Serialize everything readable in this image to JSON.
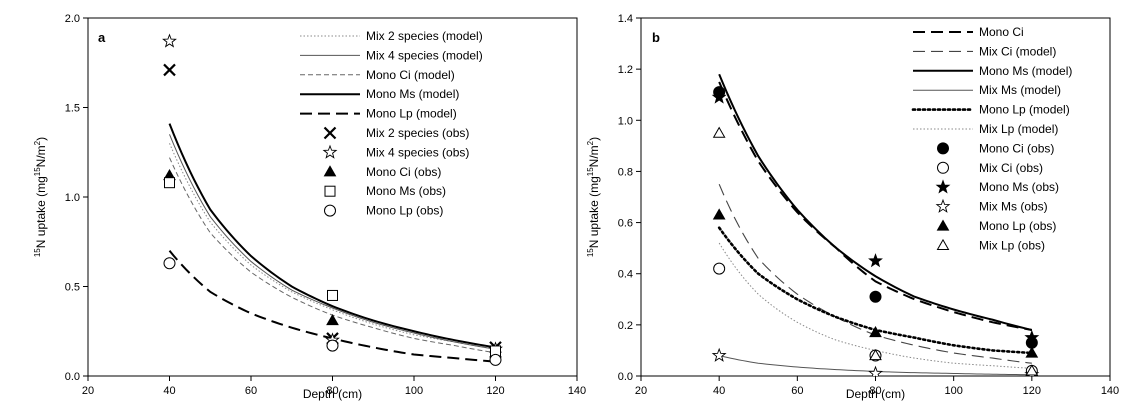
{
  "chart_data": [
    {
      "type": "scatter",
      "panel_label": "a",
      "xlabel": "Depth (cm)",
      "ylabel_prefix": "15",
      "ylabel_main": "N uptake (mg",
      "ylabel_mid": "15",
      "ylabel_end": "N/m",
      "ylabel_sup2": "2",
      "ylabel_close": ")",
      "xlim": [
        20,
        140
      ],
      "ylim": [
        0,
        2.0
      ],
      "xticks": [
        "20",
        "40",
        "60",
        "80",
        "100",
        "120",
        "140"
      ],
      "yticks": [
        "0.0",
        "0.5",
        "1.0",
        "1.5",
        "2.0"
      ],
      "legend_position": "top-right",
      "series": [
        {
          "name": "Mix 2 species (model)",
          "kind": "model",
          "style": "dotted",
          "x": [
            40,
            50,
            60,
            70,
            80,
            90,
            100,
            110,
            120
          ],
          "values": [
            1.3,
            0.86,
            0.62,
            0.47,
            0.37,
            0.29,
            0.23,
            0.19,
            0.15
          ]
        },
        {
          "name": "Mix 4 species (model)",
          "kind": "model",
          "style": "thin",
          "x": [
            40,
            50,
            60,
            70,
            80,
            90,
            100,
            110,
            120
          ],
          "values": [
            1.35,
            0.89,
            0.64,
            0.48,
            0.38,
            0.3,
            0.24,
            0.19,
            0.15
          ]
        },
        {
          "name": "Mono Ci (model)",
          "kind": "model",
          "style": "shortdash",
          "x": [
            40,
            50,
            60,
            70,
            80,
            90,
            100,
            110,
            120
          ],
          "values": [
            1.22,
            0.8,
            0.58,
            0.44,
            0.34,
            0.27,
            0.21,
            0.17,
            0.13
          ]
        },
        {
          "name": "Mono Ms (model)",
          "kind": "model",
          "style": "thick",
          "x": [
            40,
            50,
            60,
            70,
            80,
            90,
            100,
            110,
            120
          ],
          "values": [
            1.41,
            0.93,
            0.67,
            0.5,
            0.39,
            0.31,
            0.25,
            0.2,
            0.16
          ]
        },
        {
          "name": "Mono Lp (model)",
          "kind": "model",
          "style": "longdash",
          "x": [
            40,
            50,
            60,
            70,
            80,
            90,
            100,
            110,
            120
          ],
          "values": [
            0.7,
            0.47,
            0.35,
            0.27,
            0.21,
            0.16,
            0.12,
            0.1,
            0.08
          ]
        },
        {
          "name": "Mix 2 species (obs)",
          "kind": "obs",
          "marker": "x",
          "x": [
            40,
            80,
            120
          ],
          "values": [
            1.71,
            0.21,
            0.16
          ]
        },
        {
          "name": "Mix 4 species (obs)",
          "kind": "obs",
          "marker": "star-open",
          "x": [
            40,
            80,
            120
          ],
          "values": [
            1.87,
            0.2,
            0.15
          ]
        },
        {
          "name": "Mono Ci (obs)",
          "kind": "obs",
          "marker": "triangle-filled",
          "x": [
            40,
            80,
            120
          ],
          "values": [
            1.12,
            0.31,
            0.13
          ]
        },
        {
          "name": "Mono Ms (obs)",
          "kind": "obs",
          "marker": "square-open",
          "x": [
            40,
            80,
            120
          ],
          "values": [
            1.08,
            0.45,
            0.14
          ]
        },
        {
          "name": "Mono Lp (obs)",
          "kind": "obs",
          "marker": "circle-open",
          "x": [
            40,
            80,
            120
          ],
          "values": [
            0.63,
            0.17,
            0.09
          ]
        }
      ]
    },
    {
      "type": "scatter",
      "panel_label": "b",
      "xlabel": "Depth (cm)",
      "ylabel_prefix": "15",
      "ylabel_main": "N uptake (mg",
      "ylabel_mid": "15",
      "ylabel_end": "N/m",
      "ylabel_sup2": "2",
      "ylabel_close": ")",
      "xlim": [
        20,
        140
      ],
      "ylim": [
        0,
        1.4
      ],
      "xticks": [
        "20",
        "40",
        "60",
        "80",
        "100",
        "120",
        "140"
      ],
      "yticks": [
        "0.0",
        "0.2",
        "0.4",
        "0.6",
        "0.8",
        "1.0",
        "1.2",
        "1.4"
      ],
      "legend_position": "top-right",
      "series": [
        {
          "name": "Mono Ci",
          "kind": "model",
          "style": "longdash",
          "x": [
            40,
            50,
            60,
            70,
            80,
            90,
            100,
            110,
            120
          ],
          "values": [
            1.15,
            0.84,
            0.64,
            0.5,
            0.37,
            0.3,
            0.25,
            0.21,
            0.18
          ]
        },
        {
          "name": "Mix Ci (model)",
          "kind": "model",
          "style": "longdash-thin",
          "x": [
            40,
            50,
            60,
            70,
            80,
            90,
            100,
            110,
            120
          ],
          "values": [
            0.75,
            0.46,
            0.32,
            0.23,
            0.16,
            0.12,
            0.09,
            0.07,
            0.05
          ]
        },
        {
          "name": "Mono Ms (model)",
          "kind": "model",
          "style": "thick",
          "x": [
            40,
            50,
            60,
            70,
            80,
            90,
            100,
            110,
            120
          ],
          "values": [
            1.18,
            0.86,
            0.65,
            0.5,
            0.39,
            0.31,
            0.26,
            0.22,
            0.18
          ]
        },
        {
          "name": "Mix Ms (model)",
          "kind": "model",
          "style": "thin",
          "x": [
            40,
            50,
            60,
            70,
            80,
            90,
            100,
            110,
            120
          ],
          "values": [
            0.08,
            0.05,
            0.035,
            0.025,
            0.018,
            0.013,
            0.01,
            0.007,
            0.005
          ]
        },
        {
          "name": "Mono Lp (model)",
          "kind": "model",
          "style": "bigdot",
          "x": [
            40,
            50,
            60,
            70,
            80,
            90,
            100,
            110,
            120
          ],
          "values": [
            0.58,
            0.4,
            0.3,
            0.23,
            0.18,
            0.15,
            0.12,
            0.1,
            0.09
          ]
        },
        {
          "name": "Mix Lp (model)",
          "kind": "model",
          "style": "dotted",
          "x": [
            40,
            50,
            60,
            70,
            80,
            90,
            100,
            110,
            120
          ],
          "values": [
            0.52,
            0.32,
            0.21,
            0.14,
            0.1,
            0.07,
            0.05,
            0.04,
            0.03
          ]
        },
        {
          "name": "Mono Ci (obs)",
          "kind": "obs",
          "marker": "circle-filled",
          "x": [
            40,
            80,
            120
          ],
          "values": [
            1.11,
            0.31,
            0.13
          ]
        },
        {
          "name": "Mix Ci (obs)",
          "kind": "obs",
          "marker": "circle-open",
          "x": [
            40,
            80,
            120
          ],
          "values": [
            0.42,
            0.08,
            0.02
          ]
        },
        {
          "name": "Mono Ms (obs)",
          "kind": "obs",
          "marker": "star-filled",
          "x": [
            40,
            80,
            120
          ],
          "values": [
            1.09,
            0.45,
            0.15
          ]
        },
        {
          "name": "Mix Ms (obs)",
          "kind": "obs",
          "marker": "star-open",
          "x": [
            40,
            80,
            120
          ],
          "values": [
            0.08,
            0.01,
            0.005
          ]
        },
        {
          "name": "Mono Lp (obs)",
          "kind": "obs",
          "marker": "triangle-filled",
          "x": [
            40,
            80,
            120
          ],
          "values": [
            0.63,
            0.17,
            0.09
          ]
        },
        {
          "name": "Mix Lp (obs)",
          "kind": "obs",
          "marker": "triangle-open",
          "x": [
            40,
            80,
            120
          ],
          "values": [
            0.95,
            0.08,
            0.02
          ]
        }
      ]
    }
  ]
}
